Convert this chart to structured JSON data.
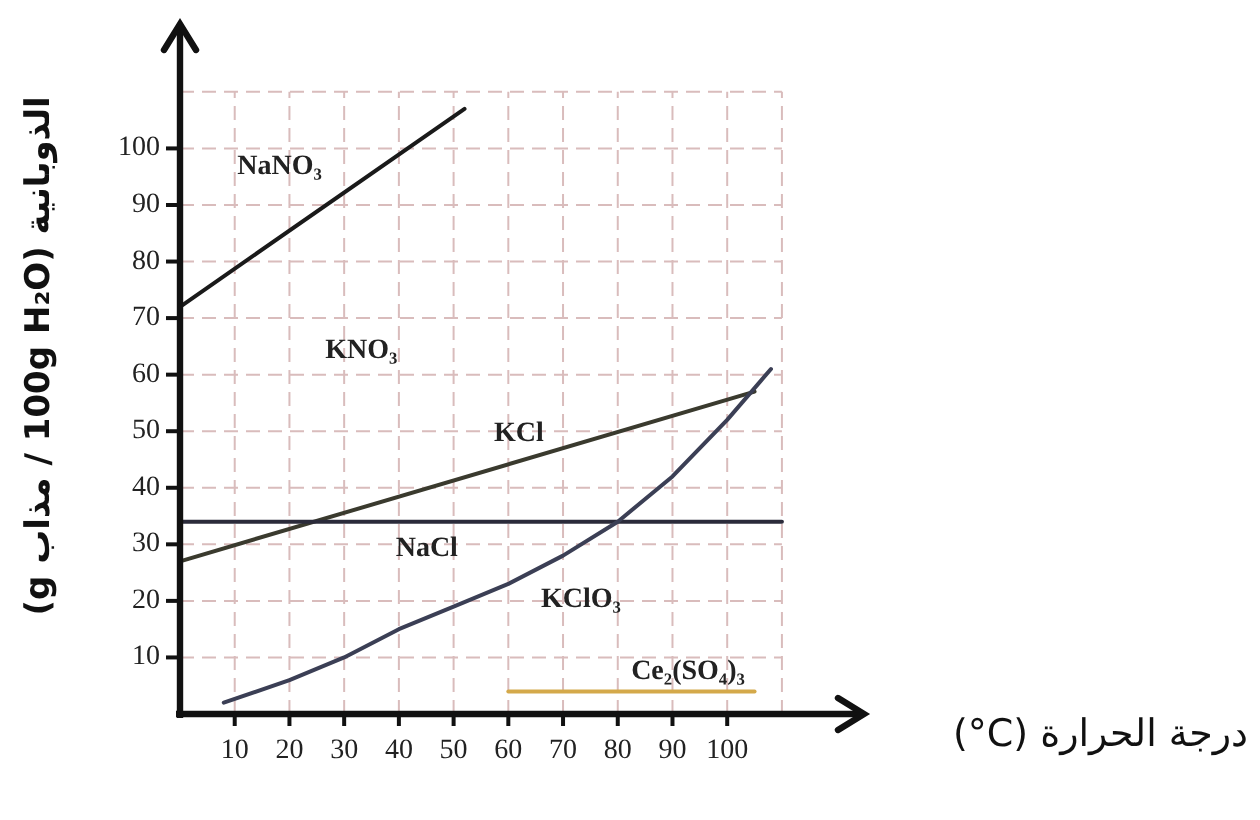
{
  "chart_data": {
    "type": "line",
    "xlabel": "درجة الحرارة (°C)",
    "ylabel": "(g مذاب / 100g H₂O) الذوبانية",
    "xlim": [
      0,
      125
    ],
    "ylim": [
      0,
      122
    ],
    "xticks": [
      10,
      20,
      30,
      40,
      50,
      60,
      70,
      80,
      90,
      100,
      {
        "value": 110,
        "label": null
      }
    ],
    "yticks": [
      10,
      20,
      30,
      40,
      50,
      60,
      70,
      80,
      90,
      100,
      {
        "value": 110,
        "label": null
      }
    ],
    "grid": true,
    "series": [
      {
        "name": "NaNO₃",
        "color": "#1a1a1a",
        "x": [
          0,
          52
        ],
        "values": [
          72,
          107
        ]
      },
      {
        "name": "KCl",
        "color": "#3a3a2e",
        "x": [
          0,
          105
        ],
        "values": [
          27,
          57
        ]
      },
      {
        "name": "NaCl",
        "color": "#2b2b3a",
        "x": [
          0,
          110
        ],
        "values": [
          34,
          34
        ]
      },
      {
        "name": "KClO₃",
        "color": "#3b3f55",
        "x": [
          8,
          20,
          30,
          40,
          50,
          60,
          70,
          80,
          90,
          100,
          108
        ],
        "values": [
          2,
          6,
          10,
          15,
          19,
          23,
          28,
          34,
          42,
          52,
          61
        ]
      },
      {
        "name": "Ce₂(SO₄)₃",
        "color": "#d4a94a",
        "x": [
          60,
          105
        ],
        "values": [
          4,
          4
        ]
      }
    ],
    "annotations": [
      "KNO₃"
    ]
  }
}
